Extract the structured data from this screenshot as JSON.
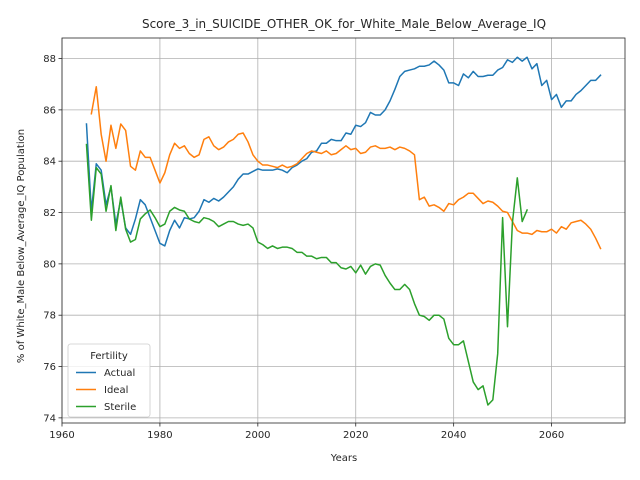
{
  "chart_data": {
    "type": "line",
    "title": "Score_3_in_SUICIDE_OTHER_OK_for_White_Male_Below_Average_IQ",
    "xlabel": "Years",
    "ylabel": "% of White_Male Below_Average_IQ Population",
    "xlim": [
      1960,
      2075
    ],
    "ylim": [
      73.8,
      88.8
    ],
    "xticks": [
      1960,
      1980,
      2000,
      2020,
      2040,
      2060
    ],
    "yticks": [
      74,
      76,
      78,
      80,
      82,
      84,
      86,
      88
    ],
    "grid": true,
    "legend": {
      "title": "Fertility",
      "placement": "lower-left"
    },
    "series": [
      {
        "name": "Actual",
        "color": "#1f77b4",
        "points": [
          [
            1965,
            85.45
          ],
          [
            1966,
            82.05
          ],
          [
            1967,
            83.9
          ],
          [
            1968,
            83.65
          ],
          [
            1969,
            82.3
          ],
          [
            1970,
            83.0
          ],
          [
            1971,
            81.55
          ],
          [
            1972,
            82.5
          ],
          [
            1973,
            81.4
          ],
          [
            1974,
            81.15
          ],
          [
            1975,
            81.75
          ],
          [
            1976,
            82.5
          ],
          [
            1977,
            82.3
          ],
          [
            1978,
            81.8
          ],
          [
            1979,
            81.3
          ],
          [
            1980,
            80.8
          ],
          [
            1981,
            80.7
          ],
          [
            1982,
            81.3
          ],
          [
            1983,
            81.7
          ],
          [
            1984,
            81.4
          ],
          [
            1985,
            81.8
          ],
          [
            1986,
            81.75
          ],
          [
            1987,
            81.8
          ],
          [
            1988,
            82.05
          ],
          [
            1989,
            82.5
          ],
          [
            1990,
            82.4
          ],
          [
            1991,
            82.55
          ],
          [
            1992,
            82.45
          ],
          [
            1993,
            82.6
          ],
          [
            1994,
            82.8
          ],
          [
            1995,
            83.0
          ],
          [
            1996,
            83.3
          ],
          [
            1997,
            83.5
          ],
          [
            1998,
            83.5
          ],
          [
            1999,
            83.6
          ],
          [
            2000,
            83.7
          ],
          [
            2001,
            83.65
          ],
          [
            2002,
            83.65
          ],
          [
            2003,
            83.65
          ],
          [
            2004,
            83.7
          ],
          [
            2005,
            83.65
          ],
          [
            2006,
            83.55
          ],
          [
            2007,
            83.75
          ],
          [
            2008,
            83.85
          ],
          [
            2009,
            84.0
          ],
          [
            2010,
            84.1
          ],
          [
            2011,
            84.35
          ],
          [
            2012,
            84.4
          ],
          [
            2013,
            84.7
          ],
          [
            2014,
            84.7
          ],
          [
            2015,
            84.85
          ],
          [
            2016,
            84.8
          ],
          [
            2017,
            84.8
          ],
          [
            2018,
            85.1
          ],
          [
            2019,
            85.05
          ],
          [
            2020,
            85.4
          ],
          [
            2021,
            85.35
          ],
          [
            2022,
            85.5
          ],
          [
            2023,
            85.9
          ],
          [
            2024,
            85.8
          ],
          [
            2025,
            85.8
          ],
          [
            2026,
            86.0
          ],
          [
            2027,
            86.35
          ],
          [
            2028,
            86.8
          ],
          [
            2029,
            87.3
          ],
          [
            2030,
            87.5
          ],
          [
            2031,
            87.55
          ],
          [
            2032,
            87.6
          ],
          [
            2033,
            87.7
          ],
          [
            2034,
            87.7
          ],
          [
            2035,
            87.75
          ],
          [
            2036,
            87.9
          ],
          [
            2037,
            87.75
          ],
          [
            2038,
            87.55
          ],
          [
            2039,
            87.05
          ],
          [
            2040,
            87.05
          ],
          [
            2041,
            86.95
          ],
          [
            2042,
            87.4
          ],
          [
            2043,
            87.25
          ],
          [
            2044,
            87.5
          ],
          [
            2045,
            87.3
          ],
          [
            2046,
            87.3
          ],
          [
            2047,
            87.35
          ],
          [
            2048,
            87.35
          ],
          [
            2049,
            87.55
          ],
          [
            2050,
            87.65
          ],
          [
            2051,
            87.95
          ],
          [
            2052,
            87.85
          ],
          [
            2053,
            88.05
          ],
          [
            2054,
            87.9
          ],
          [
            2055,
            88.05
          ],
          [
            2056,
            87.6
          ],
          [
            2057,
            87.8
          ],
          [
            2058,
            86.95
          ],
          [
            2059,
            87.15
          ],
          [
            2060,
            86.4
          ],
          [
            2061,
            86.6
          ],
          [
            2062,
            86.1
          ],
          [
            2063,
            86.35
          ],
          [
            2064,
            86.35
          ],
          [
            2065,
            86.6
          ],
          [
            2066,
            86.75
          ],
          [
            2067,
            86.95
          ],
          [
            2068,
            87.15
          ],
          [
            2069,
            87.15
          ],
          [
            2070,
            87.35
          ]
        ]
      },
      {
        "name": "Ideal",
        "color": "#ff7f0e",
        "points": [
          [
            1966,
            85.85
          ],
          [
            1967,
            86.9
          ],
          [
            1968,
            85.05
          ],
          [
            1969,
            84.0
          ],
          [
            1970,
            85.4
          ],
          [
            1971,
            84.5
          ],
          [
            1972,
            85.45
          ],
          [
            1973,
            85.2
          ],
          [
            1974,
            83.8
          ],
          [
            1975,
            83.65
          ],
          [
            1976,
            84.4
          ],
          [
            1977,
            84.15
          ],
          [
            1978,
            84.15
          ],
          [
            1979,
            83.65
          ],
          [
            1980,
            83.15
          ],
          [
            1981,
            83.55
          ],
          [
            1982,
            84.25
          ],
          [
            1983,
            84.7
          ],
          [
            1984,
            84.5
          ],
          [
            1985,
            84.6
          ],
          [
            1986,
            84.3
          ],
          [
            1987,
            84.15
          ],
          [
            1988,
            84.25
          ],
          [
            1989,
            84.85
          ],
          [
            1990,
            84.95
          ],
          [
            1991,
            84.6
          ],
          [
            1992,
            84.45
          ],
          [
            1993,
            84.55
          ],
          [
            1994,
            84.75
          ],
          [
            1995,
            84.85
          ],
          [
            1996,
            85.05
          ],
          [
            1997,
            85.1
          ],
          [
            1998,
            84.75
          ],
          [
            1999,
            84.25
          ],
          [
            2000,
            84.0
          ],
          [
            2001,
            83.85
          ],
          [
            2002,
            83.85
          ],
          [
            2003,
            83.8
          ],
          [
            2004,
            83.75
          ],
          [
            2005,
            83.85
          ],
          [
            2006,
            83.75
          ],
          [
            2007,
            83.8
          ],
          [
            2008,
            83.9
          ],
          [
            2009,
            84.1
          ],
          [
            2010,
            84.3
          ],
          [
            2011,
            84.4
          ],
          [
            2012,
            84.35
          ],
          [
            2013,
            84.3
          ],
          [
            2014,
            84.4
          ],
          [
            2015,
            84.25
          ],
          [
            2016,
            84.3
          ],
          [
            2017,
            84.45
          ],
          [
            2018,
            84.6
          ],
          [
            2019,
            84.45
          ],
          [
            2020,
            84.5
          ],
          [
            2021,
            84.3
          ],
          [
            2022,
            84.35
          ],
          [
            2023,
            84.55
          ],
          [
            2024,
            84.6
          ],
          [
            2025,
            84.5
          ],
          [
            2026,
            84.5
          ],
          [
            2027,
            84.55
          ],
          [
            2028,
            84.45
          ],
          [
            2029,
            84.55
          ],
          [
            2030,
            84.5
          ],
          [
            2031,
            84.4
          ],
          [
            2032,
            84.25
          ],
          [
            2033,
            82.5
          ],
          [
            2034,
            82.6
          ],
          [
            2035,
            82.25
          ],
          [
            2036,
            82.3
          ],
          [
            2037,
            82.2
          ],
          [
            2038,
            82.05
          ],
          [
            2039,
            82.35
          ],
          [
            2040,
            82.3
          ],
          [
            2041,
            82.5
          ],
          [
            2042,
            82.6
          ],
          [
            2043,
            82.75
          ],
          [
            2044,
            82.75
          ],
          [
            2045,
            82.55
          ],
          [
            2046,
            82.35
          ],
          [
            2047,
            82.45
          ],
          [
            2048,
            82.4
          ],
          [
            2049,
            82.25
          ],
          [
            2050,
            82.05
          ],
          [
            2051,
            82.0
          ],
          [
            2052,
            81.65
          ],
          [
            2053,
            81.3
          ],
          [
            2054,
            81.2
          ],
          [
            2055,
            81.2
          ],
          [
            2056,
            81.15
          ],
          [
            2057,
            81.3
          ],
          [
            2058,
            81.25
          ],
          [
            2059,
            81.25
          ],
          [
            2060,
            81.35
          ],
          [
            2061,
            81.2
          ],
          [
            2062,
            81.45
          ],
          [
            2063,
            81.35
          ],
          [
            2064,
            81.6
          ],
          [
            2065,
            81.65
          ],
          [
            2066,
            81.7
          ],
          [
            2067,
            81.55
          ],
          [
            2068,
            81.35
          ],
          [
            2069,
            81.0
          ],
          [
            2070,
            80.6
          ]
        ]
      },
      {
        "name": "Sterile",
        "color": "#2ca02c",
        "points": [
          [
            1965,
            84.65
          ],
          [
            1966,
            81.7
          ],
          [
            1967,
            83.75
          ],
          [
            1968,
            83.5
          ],
          [
            1969,
            82.05
          ],
          [
            1970,
            83.05
          ],
          [
            1971,
            81.3
          ],
          [
            1972,
            82.6
          ],
          [
            1973,
            81.35
          ],
          [
            1974,
            80.85
          ],
          [
            1975,
            80.95
          ],
          [
            1976,
            81.75
          ],
          [
            1977,
            81.95
          ],
          [
            1978,
            82.1
          ],
          [
            1979,
            81.8
          ],
          [
            1980,
            81.45
          ],
          [
            1981,
            81.55
          ],
          [
            1982,
            82.05
          ],
          [
            1983,
            82.2
          ],
          [
            1984,
            82.1
          ],
          [
            1985,
            82.05
          ],
          [
            1986,
            81.75
          ],
          [
            1987,
            81.65
          ],
          [
            1988,
            81.6
          ],
          [
            1989,
            81.8
          ],
          [
            1990,
            81.75
          ],
          [
            1991,
            81.65
          ],
          [
            1992,
            81.45
          ],
          [
            1993,
            81.55
          ],
          [
            1994,
            81.65
          ],
          [
            1995,
            81.65
          ],
          [
            1996,
            81.55
          ],
          [
            1997,
            81.5
          ],
          [
            1998,
            81.55
          ],
          [
            1999,
            81.4
          ],
          [
            2000,
            80.85
          ],
          [
            2001,
            80.75
          ],
          [
            2002,
            80.6
          ],
          [
            2003,
            80.7
          ],
          [
            2004,
            80.6
          ],
          [
            2005,
            80.65
          ],
          [
            2006,
            80.65
          ],
          [
            2007,
            80.6
          ],
          [
            2008,
            80.45
          ],
          [
            2009,
            80.45
          ],
          [
            2010,
            80.3
          ],
          [
            2011,
            80.3
          ],
          [
            2012,
            80.2
          ],
          [
            2013,
            80.25
          ],
          [
            2014,
            80.25
          ],
          [
            2015,
            80.05
          ],
          [
            2016,
            80.05
          ],
          [
            2017,
            79.85
          ],
          [
            2018,
            79.8
          ],
          [
            2019,
            79.9
          ],
          [
            2020,
            79.65
          ],
          [
            2021,
            79.95
          ],
          [
            2022,
            79.6
          ],
          [
            2023,
            79.9
          ],
          [
            2024,
            80.0
          ],
          [
            2025,
            79.95
          ],
          [
            2026,
            79.55
          ],
          [
            2027,
            79.25
          ],
          [
            2028,
            79.0
          ],
          [
            2029,
            79.0
          ],
          [
            2030,
            79.2
          ],
          [
            2031,
            79.0
          ],
          [
            2032,
            78.45
          ],
          [
            2033,
            78.0
          ],
          [
            2034,
            77.95
          ],
          [
            2035,
            77.8
          ],
          [
            2036,
            78.0
          ],
          [
            2037,
            78.0
          ],
          [
            2038,
            77.85
          ],
          [
            2039,
            77.1
          ],
          [
            2040,
            76.85
          ],
          [
            2041,
            76.85
          ],
          [
            2042,
            77.0
          ],
          [
            2043,
            76.2
          ],
          [
            2044,
            75.4
          ],
          [
            2045,
            75.1
          ],
          [
            2046,
            75.25
          ],
          [
            2047,
            74.5
          ],
          [
            2048,
            74.7
          ],
          [
            2049,
            76.5
          ],
          [
            2050,
            81.8
          ],
          [
            2051,
            77.55
          ],
          [
            2052,
            81.6
          ],
          [
            2053,
            83.35
          ],
          [
            2054,
            81.65
          ],
          [
            2055,
            82.1
          ]
        ]
      }
    ]
  }
}
